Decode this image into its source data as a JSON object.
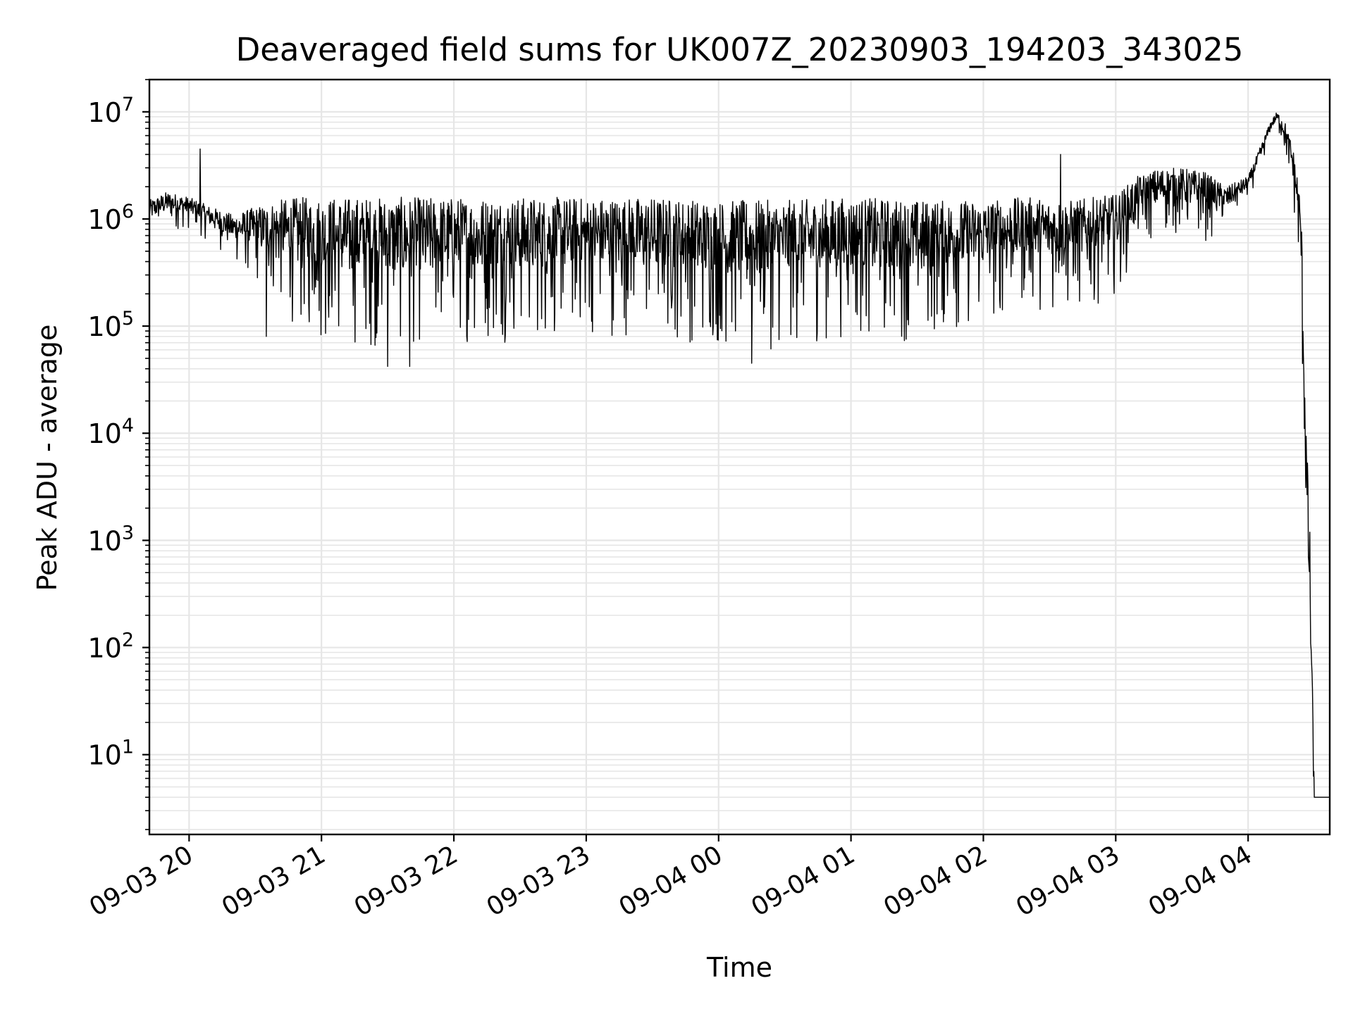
{
  "chart_data": {
    "type": "line",
    "title": "Deaveraged field sums for UK007Z_20230903_194203_343025",
    "xlabel": "Time",
    "ylabel": "Peak ADU - average",
    "x_ticks": [
      "09-03 20",
      "09-03 21",
      "09-03 22",
      "09-03 23",
      "09-04 00",
      "09-04 01",
      "09-04 02",
      "09-04 03",
      "09-04 04"
    ],
    "y_ticks": [
      1,
      2,
      3,
      4,
      5,
      6,
      7
    ],
    "y_scale": "log",
    "ylim": [
      1.8,
      20000000
    ],
    "xlim": [
      "2023-09-03 19:42",
      "2023-09-04 04:37"
    ],
    "grid": true,
    "line_color": "#000000",
    "grid_color": "#e6e6e6",
    "series": [
      {
        "envelope": {
          "x": [
            "2023-09-03 19:42",
            "2023-09-03 19:50",
            "2023-09-03 20:00",
            "2023-09-03 20:10",
            "2023-09-03 20:20",
            "2023-09-03 20:30",
            "2023-09-03 20:40",
            "2023-09-03 20:50",
            "2023-09-03 21:00",
            "2023-09-03 21:30",
            "2023-09-03 22:00",
            "2023-09-03 22:30",
            "2023-09-03 23:00",
            "2023-09-03 23:30",
            "2023-09-04 00:00",
            "2023-09-04 00:30",
            "2023-09-04 01:00",
            "2023-09-04 01:30",
            "2023-09-04 02:00",
            "2023-09-04 02:20",
            "2023-09-04 02:40",
            "2023-09-04 03:00",
            "2023-09-04 03:10",
            "2023-09-04 03:20",
            "2023-09-04 03:30",
            "2023-09-04 03:40",
            "2023-09-04 03:50",
            "2023-09-04 04:00",
            "2023-09-04 04:06",
            "2023-09-04 04:10",
            "2023-09-04 04:13",
            "2023-09-04 04:16",
            "2023-09-04 04:20",
            "2023-09-04 04:22",
            "2023-09-04 04:24",
            "2023-09-04 04:26",
            "2023-09-04 04:28",
            "2023-09-04 04:30",
            "2023-09-04 04:37"
          ],
          "upper": [
            1500000,
            1800000,
            1600000,
            1300000,
            1100000,
            1300000,
            1500000,
            1600000,
            1600000,
            1600000,
            1600000,
            1600000,
            1600000,
            1600000,
            1500000,
            1500000,
            1600000,
            1500000,
            1500000,
            1600000,
            1500000,
            1700000,
            2500000,
            3000000,
            3000000,
            2800000,
            2000000,
            2500000,
            5000000,
            8000000,
            10000000,
            9000000,
            5000000,
            3000000,
            1500000,
            20000,
            1200,
            4,
            4
          ],
          "lower": [
            700000,
            800000,
            800000,
            600000,
            400000,
            250000,
            150000,
            90000,
            70000,
            60000,
            70000,
            70000,
            80000,
            80000,
            60000,
            60000,
            80000,
            70000,
            100000,
            150000,
            120000,
            200000,
            500000,
            700000,
            700000,
            600000,
            800000,
            1500000,
            3000000,
            6000000,
            7000000,
            4000000,
            1500000,
            600000,
            100000,
            1000,
            20,
            4,
            4
          ]
        },
        "spikes": [
          {
            "x": "2023-09-03 20:05",
            "y": 4500000
          },
          {
            "x": "2023-09-03 20:35",
            "y": 80000
          },
          {
            "x": "2023-09-03 21:30",
            "y": 42000
          },
          {
            "x": "2023-09-03 21:40",
            "y": 42000
          },
          {
            "x": "2023-09-04 00:15",
            "y": 45000
          },
          {
            "x": "2023-09-04 02:35",
            "y": 4000000
          }
        ]
      }
    ]
  }
}
